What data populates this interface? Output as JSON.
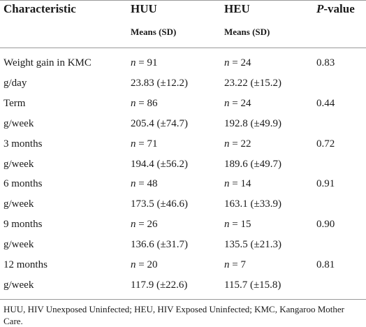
{
  "table": {
    "header": {
      "cells": [
        "Characteristic",
        "HUU",
        "HEU",
        {
          "italic": "P",
          "text": "-value"
        }
      ],
      "subheaders": [
        "Means (SD)",
        "Means (SD)"
      ]
    },
    "rows": [
      [
        "Weight gain in KMC",
        {
          "italic": "n",
          "text": " = 91"
        },
        {
          "italic": "n",
          "text": " = 24"
        },
        "0.83"
      ],
      [
        "g/day",
        "23.83 (±12.2)",
        "23.22 (±15.2)"
      ],
      [
        "Term",
        {
          "italic": "n",
          "text": " = 86"
        },
        {
          "italic": "n",
          "text": " = 24"
        },
        "0.44"
      ],
      [
        "g/week",
        "205.4 (±74.7)",
        "192.8 (±49.9)"
      ],
      [
        "3 months",
        {
          "italic": "n",
          "text": " = 71"
        },
        {
          "italic": "n",
          "text": " = 22"
        },
        "0.72"
      ],
      [
        "g/week",
        "194.4 (±56.2)",
        "189.6 (±49.7)"
      ],
      [
        "6 months",
        {
          "italic": "n",
          "text": " = 48"
        },
        {
          "italic": "n",
          "text": " = 14"
        },
        "0.91"
      ],
      [
        "g/week",
        "173.5 (±46.6)",
        "163.1 (±33.9)"
      ],
      [
        "9 months",
        {
          "italic": "n",
          "text": " = 26"
        },
        {
          "italic": "n",
          "text": " = 15"
        },
        "0.90"
      ],
      [
        "g/week",
        "136.6 (±31.7)",
        "135.5 (±21.3)"
      ],
      [
        "12 months",
        {
          "italic": "n",
          "text": " = 20"
        },
        {
          "italic": "n",
          "text": " = 7"
        },
        "0.81"
      ],
      [
        "g/week",
        "117.9 (±22.6)",
        "115.7 (±15.8)"
      ]
    ],
    "footnote": "HUU, HIV Unexposed Uninfected; HEU, HIV Exposed Uninfected; KMC, Kangaroo Mother Care."
  }
}
